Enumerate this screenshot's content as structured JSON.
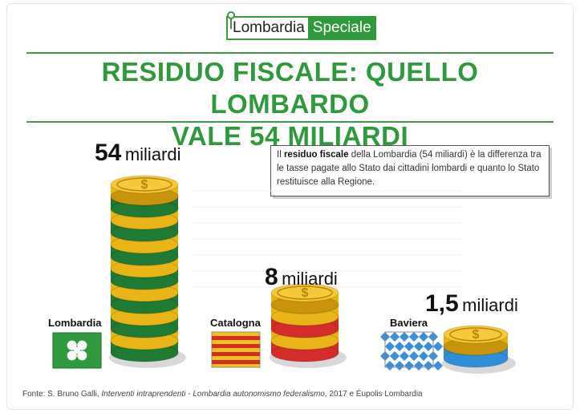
{
  "header": {
    "logo_left": "Lombardia",
    "logo_right": "Speciale"
  },
  "title": {
    "line1": "RESIDUO FISCALE: QUELLO LOMBARDO",
    "line2": "VALE 54 MILIARDI"
  },
  "note": {
    "prefix": "Il ",
    "bold": "residuo fiscale",
    "rest": " della Lombardia (54 miliardi) è la differenza tra  le tasse pagate allo Stato dai cittadini lombardi e quanto lo Stato restituisce alla Regione."
  },
  "chart_data": {
    "type": "bar",
    "categories": [
      "Lombardia",
      "Catalogna",
      "Baviera"
    ],
    "values": [
      54,
      8,
      1.5
    ],
    "unit": "miliardi",
    "value_labels": [
      "54",
      "8",
      "1,5"
    ]
  },
  "colors": {
    "title_green": "#2f9a3c",
    "coin_gold": "#e8b416",
    "lombardia_stack": "#1f7a33",
    "catalogna_stack": "#d42b2b",
    "baviera_stack": "#2f8ed8"
  },
  "source": {
    "prefix": "Fonte: S. Bruno Galli, ",
    "italic": "Interventi intraprendenti - Lombardia autonomismo federalismo",
    "suffix": ", 2017 e Éupolis Lombardia"
  }
}
